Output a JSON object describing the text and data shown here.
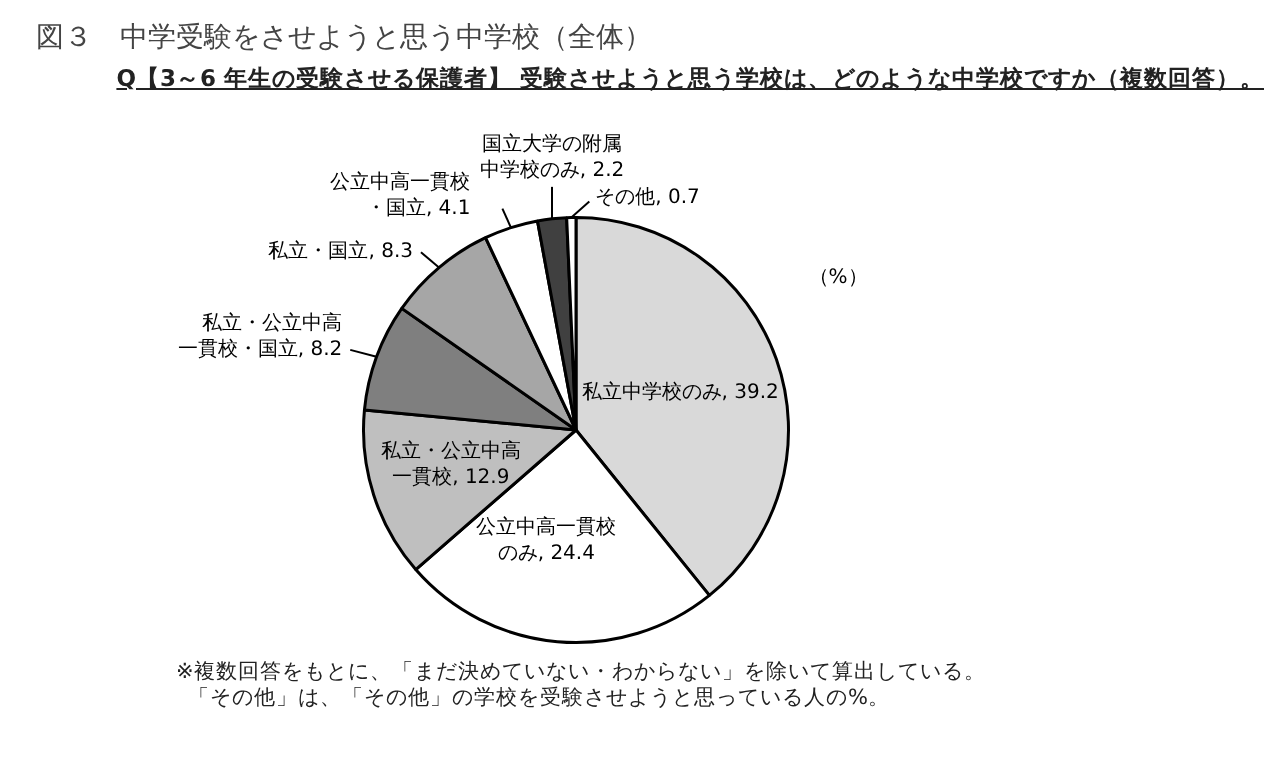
{
  "chart_data": {
    "type": "pie",
    "title": "図３　中学受験をさせようと思う中学校（全体）",
    "subtitle": "Q【3～6 年生の受験させる保護者】 受験させようと思う学校は、どのような中学校ですか（複数回答）。",
    "categories": [
      "私立中学校のみ",
      "公立中高一貫校のみ",
      "私立・公立中高一貫校",
      "私立・公立中高一貫校・国立",
      "私立・国立",
      "公立中高一貫校・国立",
      "国立大学の附属中学校のみ",
      "その他"
    ],
    "values": [
      39.2,
      24.4,
      12.9,
      8.2,
      8.3,
      4.1,
      2.2,
      0.7
    ],
    "colors": [
      "#d9d9d9",
      "#ffffff",
      "#bfbfbf",
      "#7f7f7f",
      "#a6a6a6",
      "#ffffff",
      "#404040",
      "#ffffff"
    ],
    "value_labels": [
      ", 39.2",
      ", 24.4",
      ", 12.9",
      ", 8.2",
      ", 8.3",
      ", 4.1",
      ", 2.2",
      ", 0.7"
    ],
    "legend": false,
    "annotations": [
      "（%）",
      "※複数回答をもとに、「まだ決めていない・わからない」を除いて算出している。",
      "「その他」は、「その他」の学校を受験させようと思っている人の%。"
    ]
  }
}
